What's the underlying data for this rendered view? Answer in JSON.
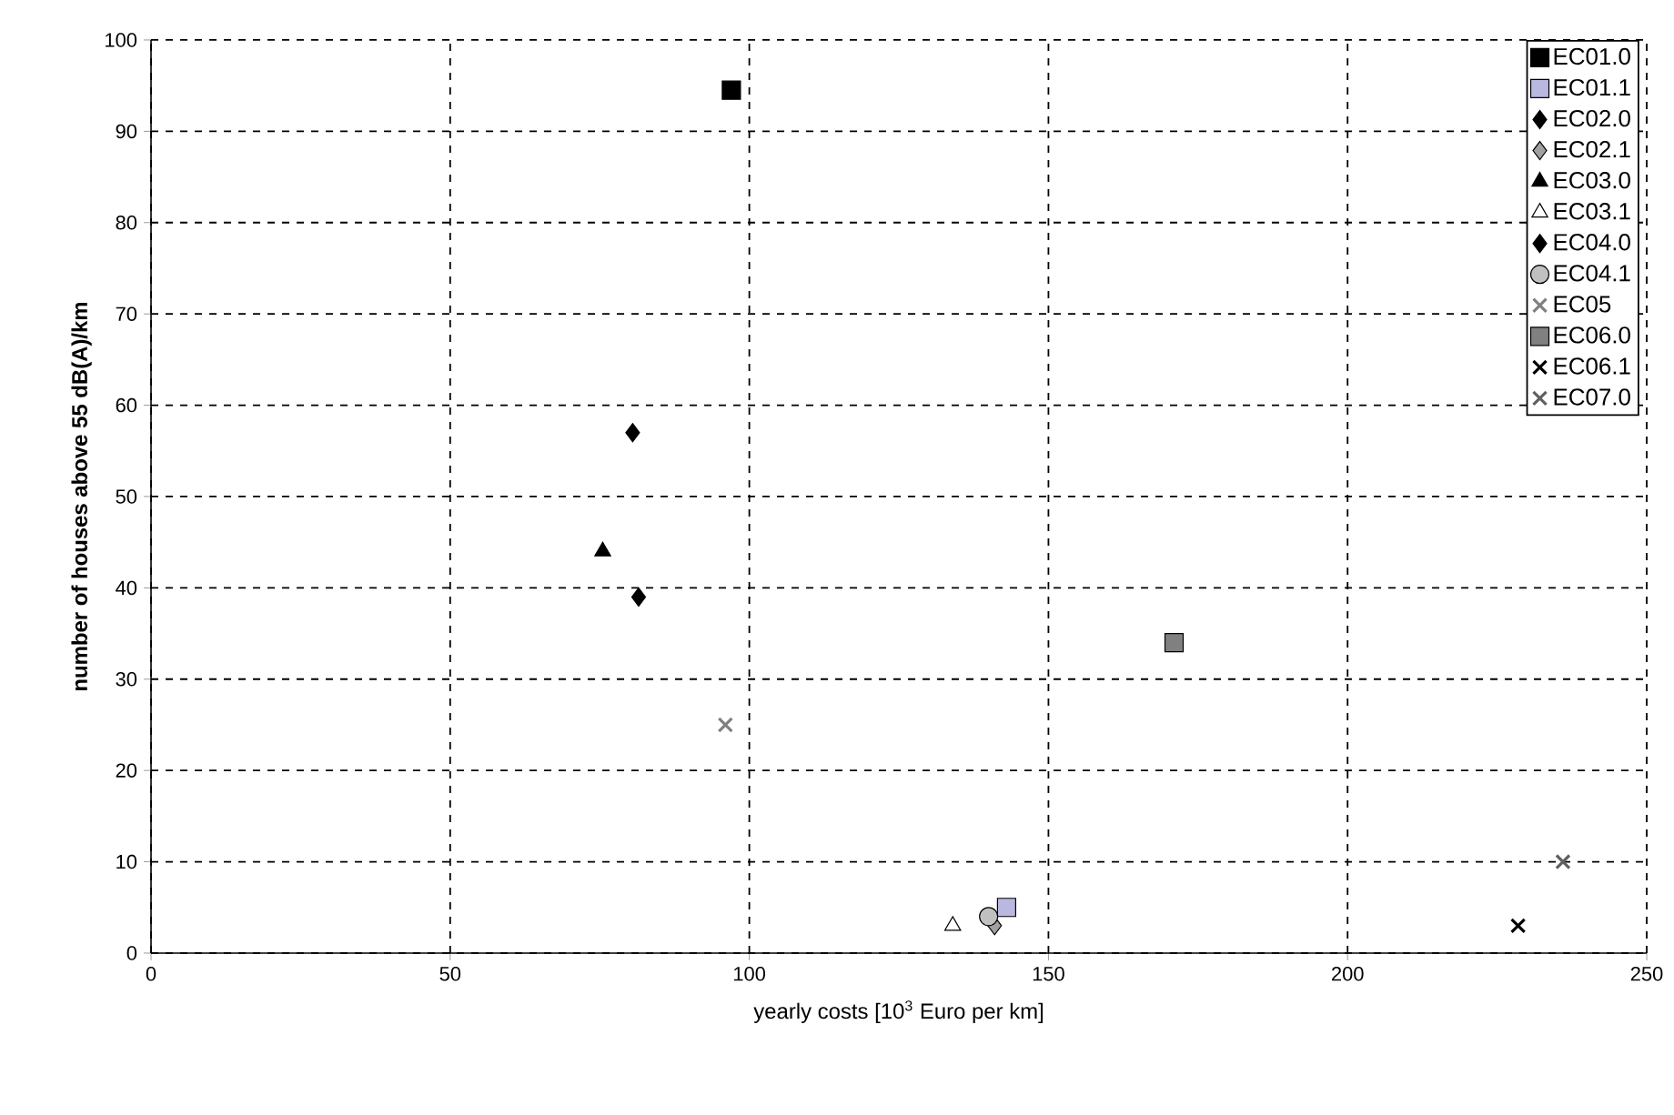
{
  "chart_data": {
    "type": "scatter",
    "xlabel": "yearly costs [10$^{3}$ Euro per km]",
    "ylabel": "number of houses above 55 dB(A)/km",
    "xlim": [
      0,
      250
    ],
    "xticks": [
      0,
      50,
      100,
      150,
      200,
      250
    ],
    "ylim": [
      0,
      100
    ],
    "yticks": [
      0,
      10,
      20,
      30,
      40,
      50,
      60,
      70,
      80,
      90,
      100
    ],
    "grid": true,
    "legend": "top right",
    "series": [
      {
        "name": "EC01.0",
        "color": "#000000",
        "marker": "square",
        "x": [
          97
        ],
        "values": [
          94.5
        ]
      },
      {
        "name": "EC01.1",
        "color": "#b8b8e0",
        "marker": "square",
        "x": [
          143
        ],
        "values": [
          5
        ]
      },
      {
        "name": "EC02.0",
        "color": "#000000",
        "marker": "diamond",
        "x": [
          81.5
        ],
        "values": [
          39
        ]
      },
      {
        "name": "EC02.1",
        "color": "#a0a0a0",
        "marker": "diamond",
        "x": [
          141
        ],
        "values": [
          3
        ]
      },
      {
        "name": "EC03.0",
        "color": "#000000",
        "marker": "triangle",
        "x": [
          75.5
        ],
        "values": [
          44
        ]
      },
      {
        "name": "EC03.1",
        "color": "#ffffff",
        "marker": "triangle",
        "x": [
          134
        ],
        "values": [
          3
        ]
      },
      {
        "name": "EC04.0",
        "color": "#000000",
        "marker": "diamond",
        "x": [
          80.5
        ],
        "values": [
          57
        ]
      },
      {
        "name": "EC04.1",
        "color": "#c0c0c0",
        "marker": "circle",
        "x": [
          140
        ],
        "values": [
          4
        ]
      },
      {
        "name": "EC05",
        "color": "#808080",
        "marker": "cross",
        "x": [
          96
        ],
        "values": [
          25
        ]
      },
      {
        "name": "EC06.0",
        "color": "#808080",
        "marker": "square",
        "x": [
          171
        ],
        "values": [
          34
        ]
      },
      {
        "name": "EC06.1",
        "color": "#000000",
        "marker": "cross",
        "x": [
          228.5
        ],
        "values": [
          3
        ]
      },
      {
        "name": "EC07.0",
        "color": "#606060",
        "marker": "cross",
        "x": [
          236
        ],
        "values": [
          10
        ]
      }
    ]
  }
}
